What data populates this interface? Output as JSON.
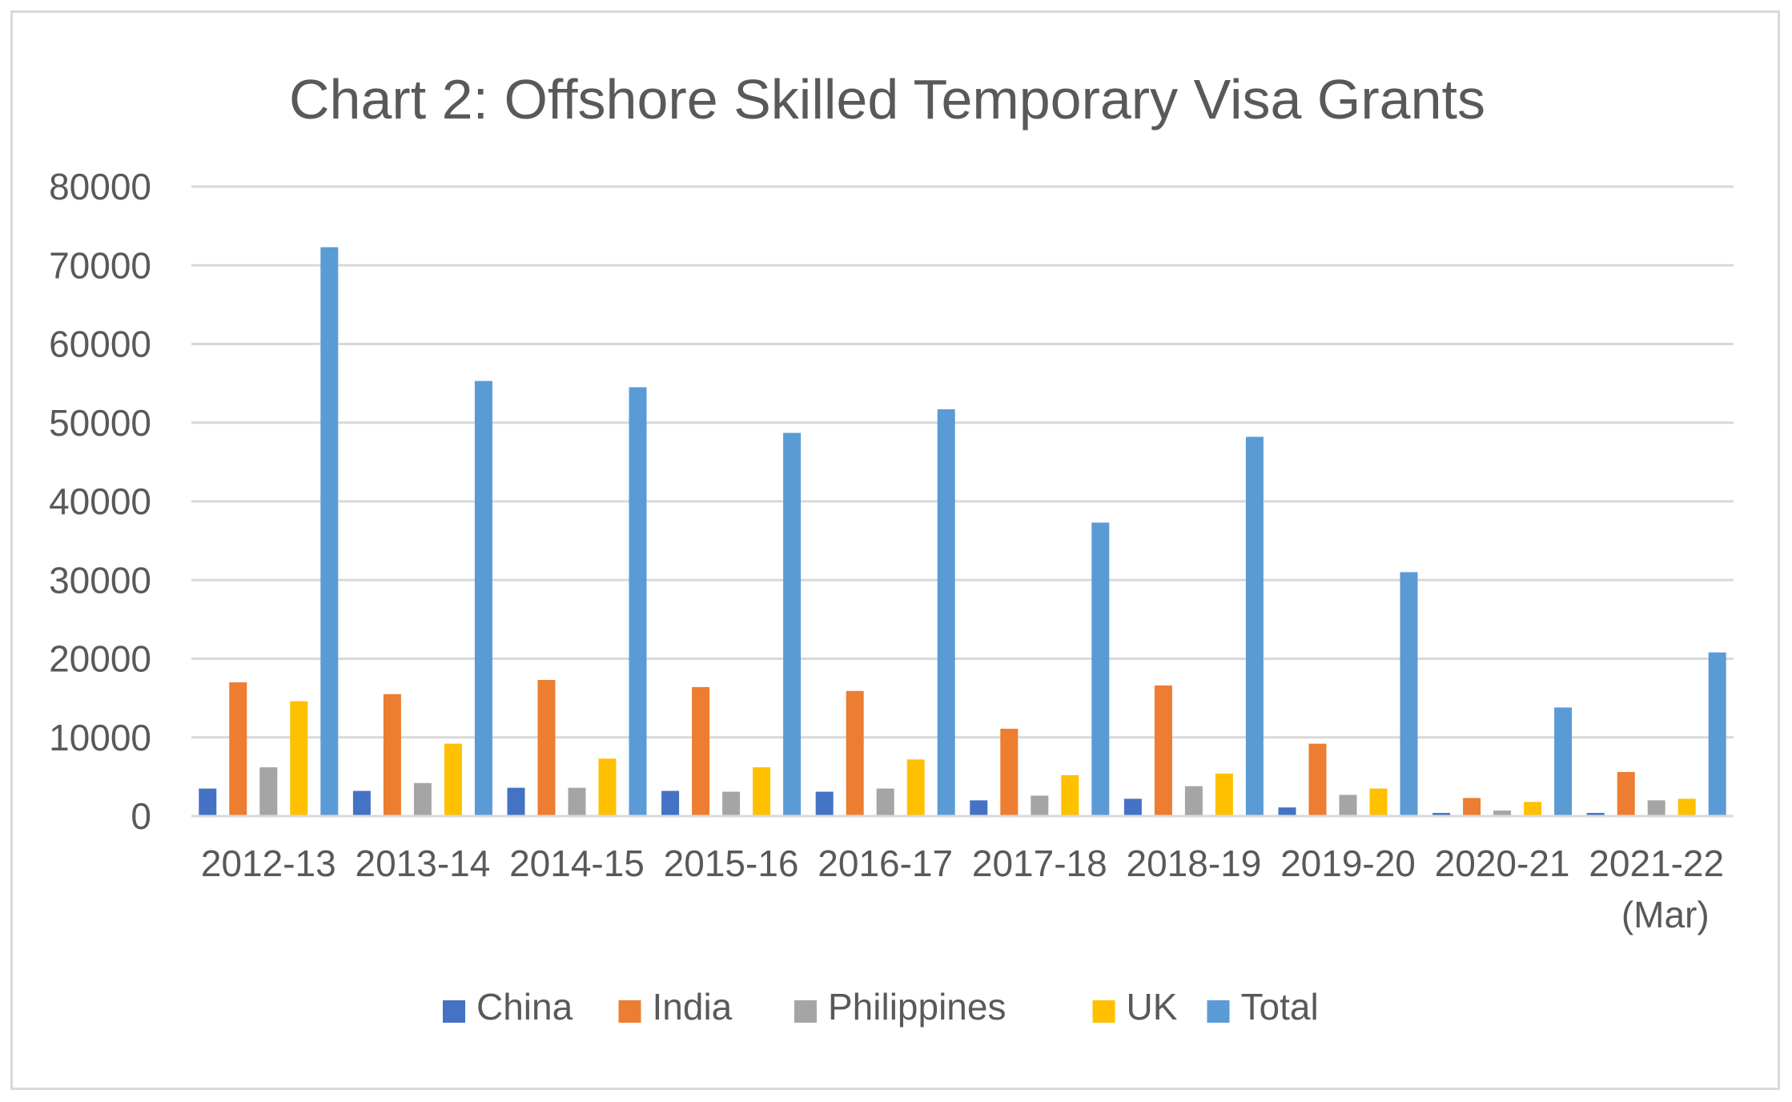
{
  "chart_data": {
    "type": "bar",
    "title": "Chart 2: Offshore Skilled Temporary Visa Grants",
    "xlabel": "",
    "ylabel": "",
    "categories": [
      [
        "2012-13"
      ],
      [
        "2013-14"
      ],
      [
        "2014-15"
      ],
      [
        "2015-16"
      ],
      [
        "2016-17"
      ],
      [
        "2017-18"
      ],
      [
        "2018-19"
      ],
      [
        "2019-20"
      ],
      [
        "2020-21"
      ],
      [
        "2021-22",
        "(Mar)"
      ]
    ],
    "ylim": [
      0,
      80000
    ],
    "yticks": [
      "0",
      "10000",
      "20000",
      "30000",
      "40000",
      "50000",
      "60000",
      "70000",
      "80000"
    ],
    "grid": true,
    "legend_position": "bottom",
    "series": [
      {
        "name": "China",
        "color": "#4472c4",
        "values": [
          3500,
          3200,
          3600,
          3200,
          3100,
          2000,
          2200,
          1100,
          400,
          400
        ]
      },
      {
        "name": "India",
        "color": "#ed7d31",
        "values": [
          17000,
          15500,
          17300,
          16400,
          15900,
          11100,
          16600,
          9200,
          2300,
          5600
        ]
      },
      {
        "name": "Philippines",
        "color": "#a5a5a5",
        "values": [
          6200,
          4200,
          3600,
          3100,
          3500,
          2600,
          3800,
          2700,
          700,
          2000
        ]
      },
      {
        "name": "UK",
        "color": "#ffc000",
        "values": [
          14600,
          9200,
          7300,
          6200,
          7200,
          5200,
          5400,
          3500,
          1800,
          2200
        ]
      },
      {
        "name": "Total",
        "color": "#5b9bd5",
        "values": [
          72300,
          55300,
          54500,
          48700,
          51700,
          37300,
          48200,
          31000,
          13800,
          20800
        ]
      }
    ]
  }
}
